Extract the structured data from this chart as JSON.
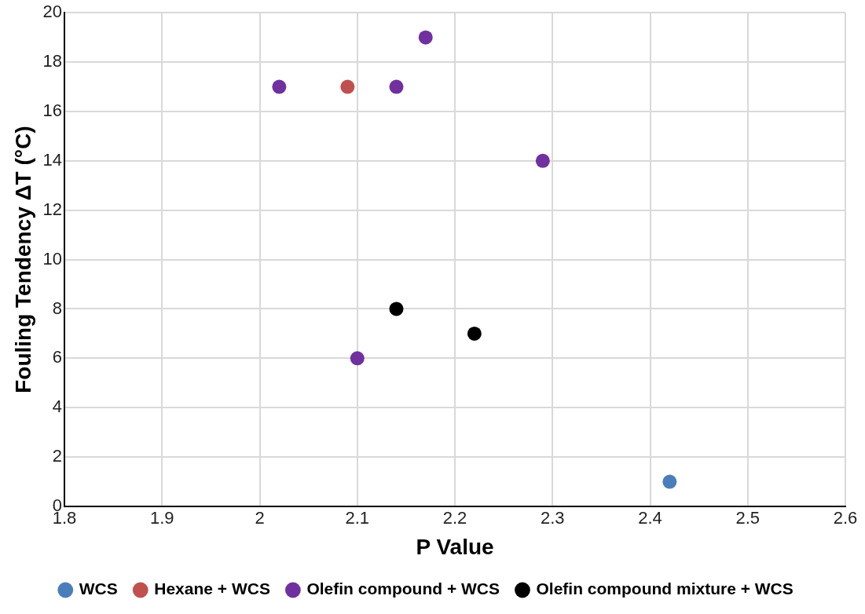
{
  "chart_data": {
    "type": "scatter",
    "xlabel": "P Value",
    "ylabel": "Fouling Tendency ΔT (°C)",
    "series": [
      {
        "name": "WCS",
        "color": "#4a7ebb",
        "x": [
          2.42
        ],
        "values": [
          1
        ]
      },
      {
        "name": "Hexane + WCS",
        "color": "#c0504d",
        "x": [
          2.09
        ],
        "values": [
          17
        ]
      },
      {
        "name": "Olefin compound + WCS",
        "color": "#7030a0",
        "x": [
          2.02,
          2.14,
          2.17,
          2.29,
          2.1
        ],
        "values": [
          17,
          17,
          19,
          14,
          6
        ]
      },
      {
        "name": "Olefin compound mixture + WCS",
        "color": "#000000",
        "x": [
          2.14,
          2.22
        ],
        "values": [
          8,
          7
        ]
      }
    ],
    "xlim": [
      1.8,
      2.6
    ],
    "xticks": [
      1.8,
      1.9,
      2,
      2.1,
      2.2,
      2.3,
      2.4,
      2.5,
      2.6
    ],
    "ylim": [
      0,
      20
    ],
    "yticks": [
      0,
      2,
      4,
      6,
      8,
      10,
      12,
      14,
      16,
      18,
      20
    ],
    "grid": true,
    "legend": "bottom",
    "marker": "circle"
  }
}
